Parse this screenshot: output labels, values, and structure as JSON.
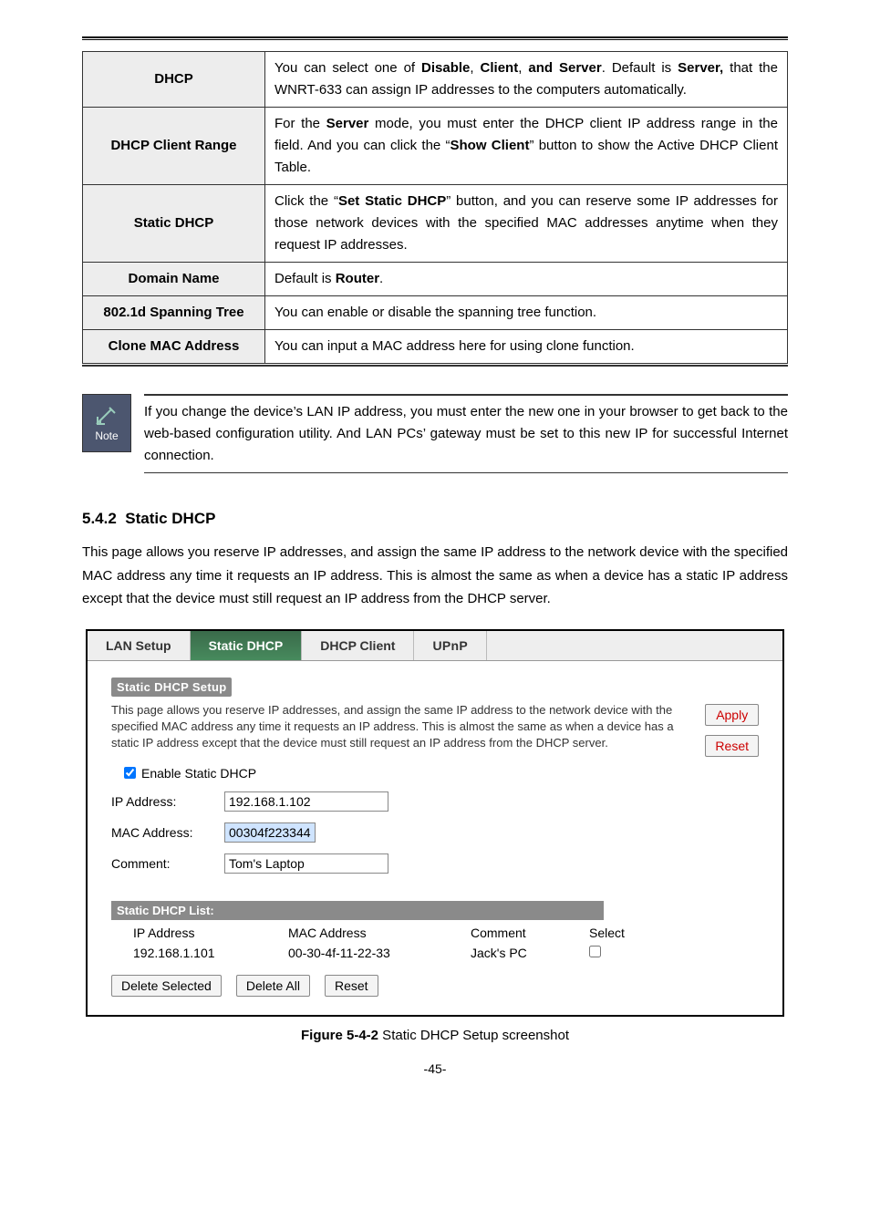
{
  "colors": {
    "label_bg": "#ededed",
    "note_bg": "#4c566f",
    "tab_active_start": "#3a6a4a",
    "tab_active_end": "#478a5d",
    "panel_title_bg": "#8a8a8a",
    "apply_reset_text": "#c00",
    "mac_input_bg": "#cfe4ff"
  },
  "param_table": [
    {
      "label": "DHCP",
      "value_html": "You can select one of <b>Disable</b>, <b>Client</b>, <b>and Server</b>. Default is <b>Server,</b> that the WNRT-633 can assign IP addresses to the computers automatically."
    },
    {
      "label": "DHCP Client Range",
      "value_html": "For the <b>Server</b> mode, you must enter the DHCP client IP address range in the field. And you can click the “<b>Show Client</b>” button to show the Active DHCP Client Table."
    },
    {
      "label": "Static DHCP",
      "value_html": "Click the “<b>Set Static DHCP</b>” button, and you can reserve some IP addresses for those network devices with the specified MAC addresses anytime when they request IP addresses."
    },
    {
      "label": "Domain Name",
      "value_html": "Default is <b>Router</b>."
    },
    {
      "label": "802.1d Spanning Tree",
      "value_html": "You can enable or disable the spanning tree function."
    },
    {
      "label": "Clone MAC Address",
      "value_html": "You can input a MAC address here for using clone function."
    }
  ],
  "note": {
    "icon_label": "Note",
    "text": "If you change the device’s LAN IP address, you must enter the new one in your browser to get back to the web-based configuration utility. And LAN PCs’ gateway must be set to this new IP for successful Internet connection."
  },
  "section": {
    "number": "5.4.2",
    "title": "Static DHCP",
    "body": "This page allows you reserve IP addresses, and assign the same IP address to the network device with the specified MAC address any time it requests an IP address. This is almost the same as when a device has a static IP address except that the device must still request an IP address from the DHCP server."
  },
  "ui": {
    "tabs": [
      "LAN Setup",
      "Static DHCP",
      "DHCP Client",
      "UPnP"
    ],
    "active_tab": 1,
    "panel_title": "Static DHCP Setup",
    "desc": "This page allows you reserve IP addresses, and assign the same IP address to the network device with the specified MAC address any time it requests an IP address. This is almost the same as when a device has a static IP address except that the device must still request an IP address from the DHCP server.",
    "apply_btn": "Apply",
    "reset_btn": "Reset",
    "enable_label": "Enable Static DHCP",
    "enable_checked": true,
    "fields": {
      "ip_label": "IP Address:",
      "ip_value": "192.168.1.102",
      "mac_label": "MAC Address:",
      "mac_value": "00304f223344",
      "comment_label": "Comment:",
      "comment_value": "Tom's Laptop"
    },
    "list_title": "Static DHCP List:",
    "list_headers": {
      "ip": "IP Address",
      "mac": "MAC Address",
      "comment": "Comment",
      "select": "Select"
    },
    "list_rows": [
      {
        "ip": "192.168.1.101",
        "mac": "00-30-4f-11-22-33",
        "comment": "Jack's PC",
        "selected": false
      }
    ],
    "actions": {
      "delete_selected": "Delete Selected",
      "delete_all": "Delete All",
      "reset": "Reset"
    }
  },
  "caption": {
    "fig": "Figure 5-4-2",
    "text": " Static DHCP Setup screenshot"
  },
  "pagenum": "-45-"
}
